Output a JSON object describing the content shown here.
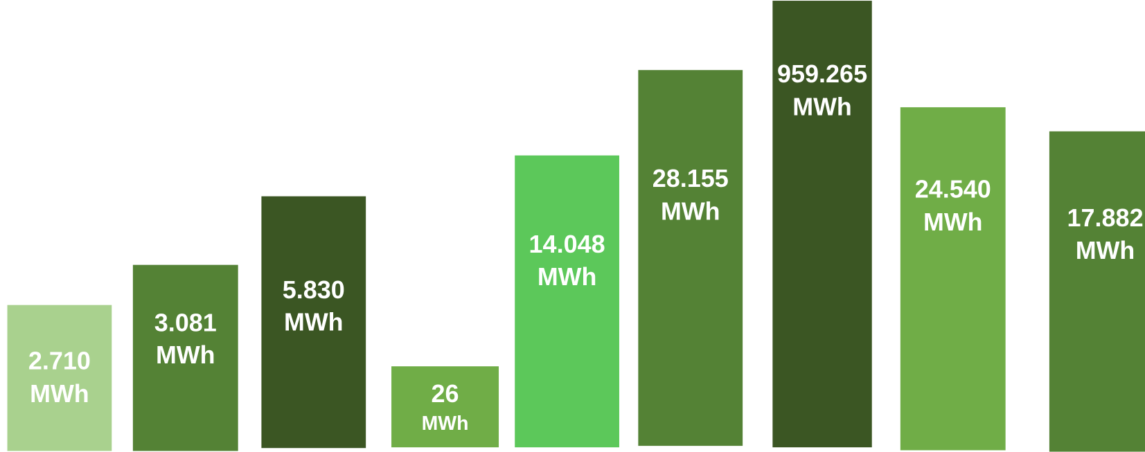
{
  "bars": [
    {
      "value": "2.710",
      "unit": "MWh"
    },
    {
      "value": "3.081",
      "unit": "MWh"
    },
    {
      "value": "5.830",
      "unit": "MWh"
    },
    {
      "value": "26",
      "unit": "MWh"
    },
    {
      "value": "14.048",
      "unit": "MWh"
    },
    {
      "value": "28.155",
      "unit": "MWh"
    },
    {
      "value": "959.265",
      "unit": "MWh"
    },
    {
      "value": "24.540",
      "unit": "MWh"
    },
    {
      "value": "17.882",
      "unit": "MWh"
    }
  ]
}
